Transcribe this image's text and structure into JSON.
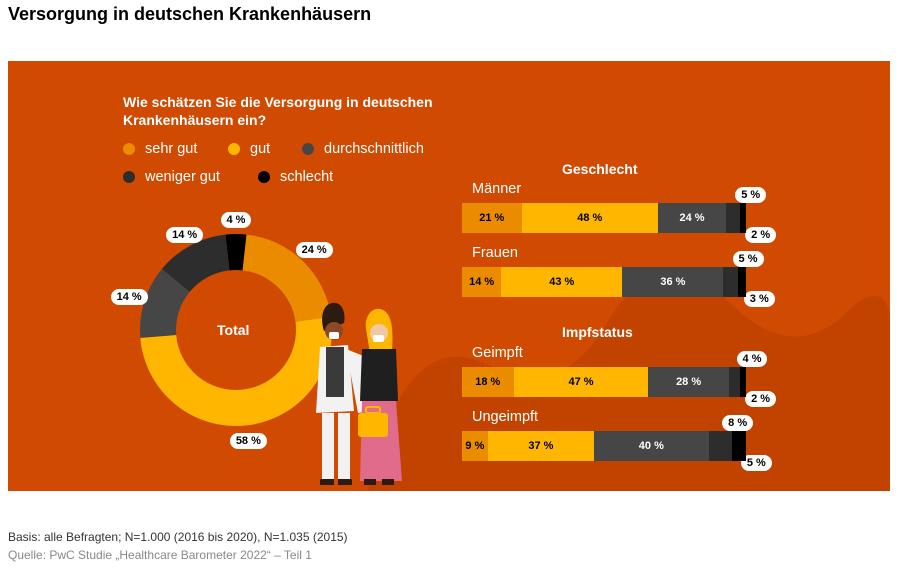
{
  "title": "Versorgung in deutschen Krankenhäusern",
  "question": "Wie schätzen Sie die Versorgung in deutschen Krankenhäusern ein?",
  "colors": {
    "panel": "#d04a02",
    "sehr_gut": "#eb8c00",
    "gut": "#ffb600",
    "durchschnittlich": "#464646",
    "weniger_gut": "#2d2d2d",
    "schlecht": "#000000"
  },
  "legend": [
    {
      "label": "sehr gut",
      "color": "#eb8c00"
    },
    {
      "label": "gut",
      "color": "#ffb600"
    },
    {
      "label": "durchschnittlich",
      "color": "#464646"
    },
    {
      "label": "weniger gut",
      "color": "#2d2d2d"
    },
    {
      "label": "schlecht",
      "color": "#000000"
    }
  ],
  "chart_data": [
    {
      "type": "pie",
      "subtype": "donut",
      "center_label": "Total",
      "categories": [
        "sehr gut",
        "gut",
        "durchschnittlich",
        "weniger gut",
        "schlecht"
      ],
      "values": [
        24,
        58,
        14,
        14,
        4
      ],
      "value_labels": [
        "24 %",
        "58 %",
        "14 %",
        "14 %",
        "4 %"
      ]
    },
    {
      "type": "bar",
      "orientation": "horizontal",
      "stacked": true,
      "categories": [
        "sehr gut",
        "gut",
        "durchschnittlich",
        "weniger gut",
        "schlecht"
      ],
      "groups": [
        {
          "title": "Geschlecht",
          "rows": [
            {
              "label": "Männer",
              "values": [
                21,
                48,
                24,
                5,
                2
              ],
              "value_labels": [
                "21 %",
                "48 %",
                "24 %",
                "5 %",
                "2 %"
              ]
            },
            {
              "label": "Frauen",
              "values": [
                14,
                43,
                36,
                5,
                3
              ],
              "value_labels": [
                "14 %",
                "43 %",
                "36 %",
                "5 %",
                "3 %"
              ]
            }
          ]
        },
        {
          "title": "Impfstatus",
          "rows": [
            {
              "label": "Geimpft",
              "values": [
                18,
                47,
                28,
                4,
                2
              ],
              "value_labels": [
                "18 %",
                "47 %",
                "28 %",
                "4 %",
                "2 %"
              ]
            },
            {
              "label": "Ungeimpft",
              "values": [
                9,
                37,
                40,
                8,
                5
              ],
              "value_labels": [
                "9 %",
                "37 %",
                "40 %",
                "8 %",
                "5 %"
              ]
            }
          ]
        }
      ]
    }
  ],
  "footer": {
    "basis": "Basis: alle Befragten; N=1.000 (2016 bis 2020), N=1.035 (2015)",
    "source": "Quelle: PwC Studie „Healthcare Barometer 2022“ – Teil 1"
  }
}
